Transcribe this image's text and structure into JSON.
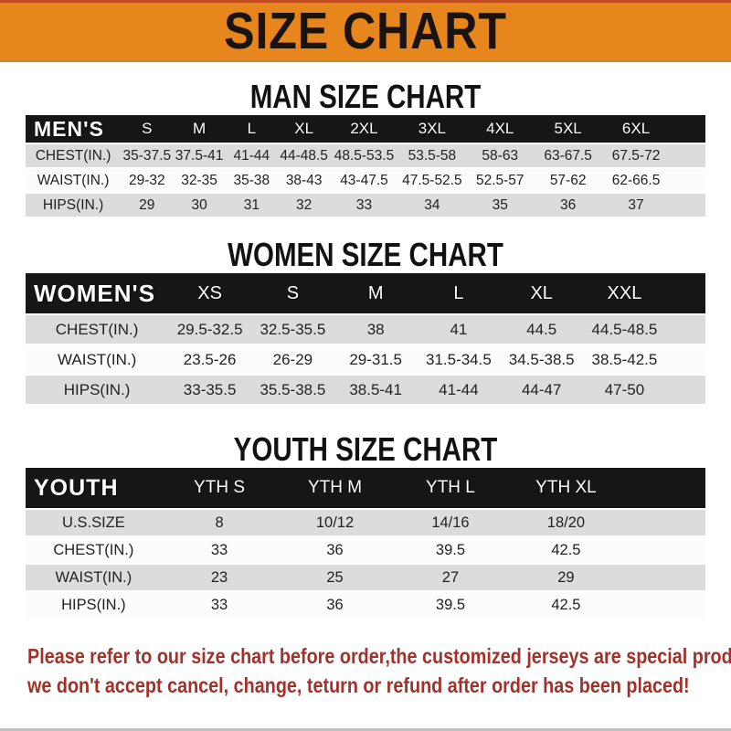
{
  "banner": {
    "title": "SIZE CHART"
  },
  "colors": {
    "banner_orange": "#E8861E",
    "band_black": "#161616",
    "row_gray": "#DCDCDC",
    "row_white": "#FCFCFC",
    "disclaimer_red": "#A23129"
  },
  "sections": [
    {
      "id": "men",
      "title": "MAN SIZE CHART",
      "table": {
        "header_label": "MEN'S",
        "columns": [
          "S",
          "M",
          "L",
          "XL",
          "2XL",
          "3XL",
          "4XL",
          "5XL",
          "6XL"
        ],
        "rows": [
          {
            "label": "CHEST(IN.)",
            "values": [
              "35-37.5",
              "37.5-41",
              "41-44",
              "44-48.5",
              "48.5-53.5",
              "53.5-58",
              "58-63",
              "63-67.5",
              "67.5-72"
            ]
          },
          {
            "label": "WAIST(IN.)",
            "values": [
              "29-32",
              "32-35",
              "35-38",
              "38-43",
              "43-47.5",
              "47.5-52.5",
              "52.5-57",
              "57-62",
              "62-66.5"
            ]
          },
          {
            "label": "HIPS(IN.)",
            "values": [
              "29",
              "30",
              "31",
              "32",
              "33",
              "34",
              "35",
              "36",
              "37"
            ]
          }
        ]
      }
    },
    {
      "id": "women",
      "title": "WOMEN SIZE CHART",
      "table": {
        "header_label": "WOMEN'S",
        "columns": [
          "XS",
          "S",
          "M",
          "L",
          "XL",
          "XXL"
        ],
        "rows": [
          {
            "label": "CHEST(IN.)",
            "values": [
              "29.5-32.5",
              "32.5-35.5",
              "38",
              "41",
              "44.5",
              "44.5-48.5"
            ]
          },
          {
            "label": "WAIST(IN.)",
            "values": [
              "23.5-26",
              "26-29",
              "29-31.5",
              "31.5-34.5",
              "34.5-38.5",
              "38.5-42.5"
            ]
          },
          {
            "label": "HIPS(IN.)",
            "values": [
              "33-35.5",
              "35.5-38.5",
              "38.5-41",
              "41-44",
              "44-47",
              "47-50"
            ]
          }
        ]
      }
    },
    {
      "id": "youth",
      "title": "YOUTH SIZE CHART",
      "table": {
        "header_label": "YOUTH",
        "columns": [
          "YTH S",
          "YTH M",
          "YTH L",
          "YTH XL"
        ],
        "rows": [
          {
            "label": "U.S.SIZE",
            "values": [
              "8",
              "10/12",
              "14/16",
              "18/20"
            ]
          },
          {
            "label": "CHEST(IN.)",
            "values": [
              "33",
              "36",
              "39.5",
              "42.5"
            ]
          },
          {
            "label": "WAIST(IN.)",
            "values": [
              "23",
              "25",
              "27",
              "29"
            ]
          },
          {
            "label": "HIPS(IN.)",
            "values": [
              "33",
              "36",
              "39.5",
              "42.5"
            ]
          }
        ]
      }
    }
  ],
  "disclaimer": {
    "line1": "Please refer to our size chart before order,the customized jerseys are special products,",
    "line2": "we don't accept cancel, change, teturn or refund after order has been placed!"
  }
}
